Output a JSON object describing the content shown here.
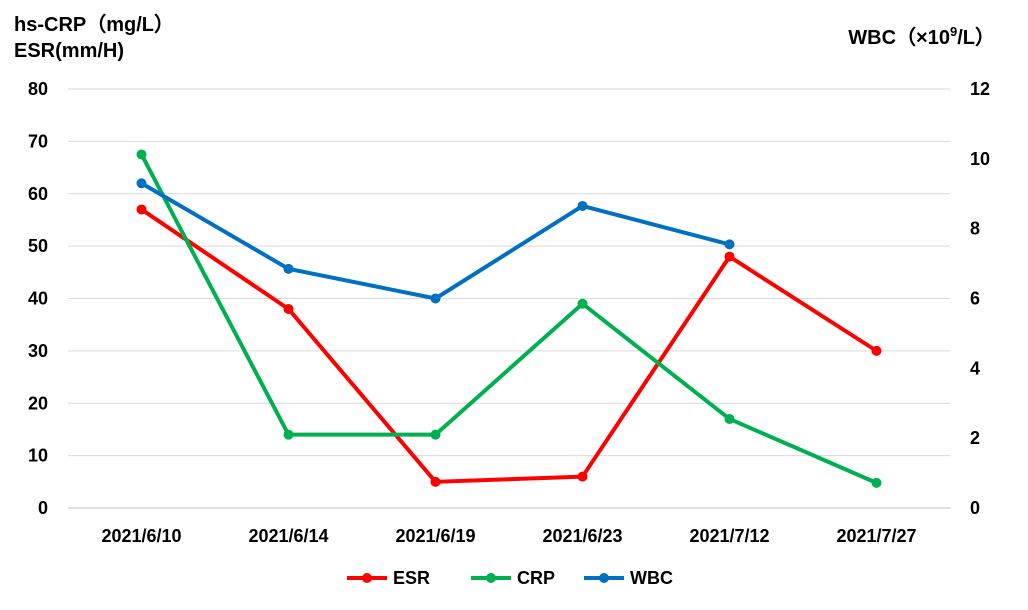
{
  "chart_data": {
    "type": "line",
    "categories": [
      "2021/6/10",
      "2021/6/14",
      "2021/6/19",
      "2021/6/23",
      "2021/7/12",
      "2021/7/27"
    ],
    "y_left": {
      "label_line1": "hs-CRP（mg/L）",
      "label_line2": "ESR(mm/H)",
      "ylim": [
        0,
        80
      ],
      "ticks": [
        "0",
        "10",
        "20",
        "30",
        "40",
        "50",
        "60",
        "70",
        "80"
      ]
    },
    "y_right": {
      "label_main": "WBC（×10",
      "label_sup": "9",
      "label_end": "/L）",
      "ylim": [
        0,
        12
      ],
      "ticks": [
        "0",
        "2",
        "4",
        "6",
        "8",
        "10",
        "12"
      ]
    },
    "series": [
      {
        "name": "ESR",
        "axis": "left",
        "color": "#ff0000",
        "values": [
          57,
          38,
          5,
          6,
          48,
          30
        ]
      },
      {
        "name": "CRP",
        "axis": "left",
        "color": "#00b050",
        "values": [
          67.5,
          14,
          14,
          39,
          17,
          4.8
        ]
      },
      {
        "name": "WBC",
        "axis": "right",
        "color": "#0070c0",
        "values": [
          9.3,
          6.85,
          6.0,
          8.65,
          7.55,
          null
        ]
      }
    ],
    "grid": true,
    "legend": "bottom-center"
  }
}
